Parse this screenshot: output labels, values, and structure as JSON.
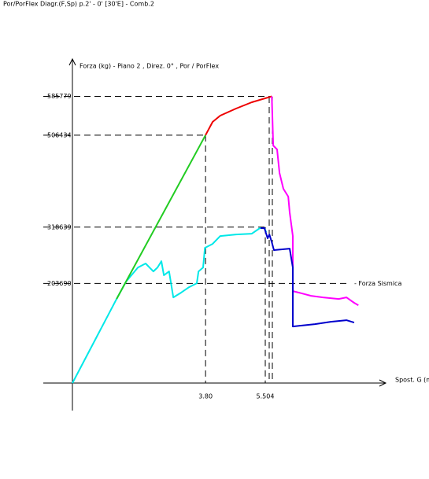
{
  "chart_data": {
    "type": "line",
    "title": "Por/PorFlex Diagr.(F,Sp) p.2' - 0' [30'E] - Comb.2",
    "y_label": "Forza (kg) - Piano 2 , Direz. 0° , Por / PorFlex",
    "x_label": "Spost. G (m",
    "annotation": "- Forza Sismica",
    "xlim": [
      -0.83,
      8.94
    ],
    "ylim": [
      -56000,
      662000
    ],
    "xticks": [
      {
        "value": 3.8,
        "label": "3.80"
      },
      5.504
    ],
    "yticks": [
      585779,
      506434,
      318639,
      203690
    ],
    "series": [
      {
        "name": "cyan",
        "color": "#00e8e8",
        "x": [
          0,
          1.26,
          1.53,
          1.87,
          2.09,
          2.2,
          2.31,
          2.43,
          2.54,
          2.61,
          2.76,
          2.88,
          3.1,
          3.33,
          3.55,
          3.6,
          3.73,
          3.78,
          4.0,
          4.22,
          4.67,
          5.12,
          5.35,
          5.48,
          5.53
        ],
        "values": [
          0,
          171949,
          207300,
          236200,
          244300,
          236200,
          228200,
          236200,
          249100,
          220200,
          228200,
          175200,
          184800,
          196100,
          204100,
          228200,
          236200,
          276400,
          284400,
          300500,
          303700,
          305300,
          316600,
          316600,
          308500
        ]
      },
      {
        "name": "green",
        "color": "#22cc22",
        "x": [
          1.26,
          3.8
        ],
        "values": [
          171949,
          506434
        ]
      },
      {
        "name": "red",
        "color": "#ee0000",
        "x": [
          3.8,
          4.0,
          4.22,
          4.67,
          5.12,
          5.69
        ],
        "values": [
          506434,
          533500,
          546400,
          560800,
          573700,
          585779
        ]
      },
      {
        "name": "magenta",
        "color": "#ff00ff",
        "x": [
          5.69,
          5.73,
          5.84,
          5.91,
          6.02,
          6.16,
          6.2,
          6.29,
          6.29,
          6.47,
          6.81,
          7.15,
          7.6,
          7.82,
          8.04,
          8.16
        ],
        "values": [
          585779,
          485300,
          477300,
          429100,
          396900,
          380900,
          348700,
          300500,
          188000,
          184800,
          178400,
          175200,
          171949,
          175200,
          164000,
          159100
        ]
      },
      {
        "name": "blue",
        "color": "#0000cc",
        "x": [
          5.37,
          5.48,
          5.57,
          5.62,
          5.69,
          5.75,
          6.2,
          6.29,
          6.29,
          6.92,
          7.37,
          7.82,
          8.04
        ],
        "values": [
          316600,
          316600,
          295700,
          303700,
          287700,
          271600,
          274800,
          236200,
          115700,
          120500,
          125300,
          128600,
          123700
        ]
      }
    ]
  }
}
